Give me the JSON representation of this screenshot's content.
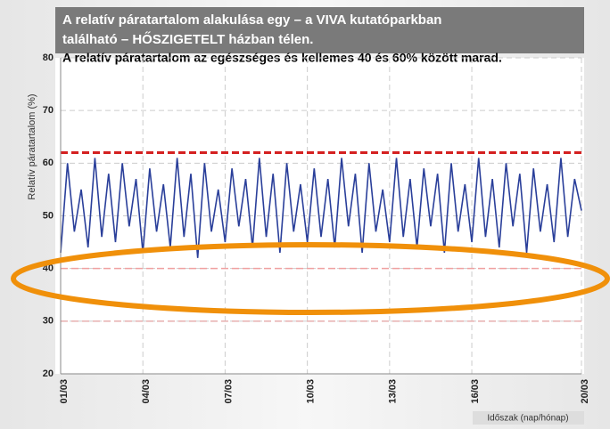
{
  "chart_data": {
    "type": "line",
    "title": [
      "A relatív páratartalom alakulása egy – a VIVA kutatóparkban",
      "található – HŐSZIGETELT házban télen."
    ],
    "subtitle": "A relatív páratartalom az egészséges és kellemes 40 és 60% között marad.",
    "y_label": "Relatív páratartalom (%)",
    "x_label": "Időszak (nap/hónap)",
    "xlim": [
      1,
      20
    ],
    "ylim": [
      20,
      80
    ],
    "xticks": [
      {
        "value": 1,
        "label": "01/03"
      },
      {
        "value": 4,
        "label": "04/03"
      },
      {
        "value": 7,
        "label": "07/03"
      },
      {
        "value": 10,
        "label": "10/03"
      },
      {
        "value": 13,
        "label": "13/03"
      },
      {
        "value": 16,
        "label": "16/03"
      },
      {
        "value": 20,
        "label": "20/03"
      }
    ],
    "yticks": [
      20,
      30,
      40,
      50,
      60,
      70,
      80
    ],
    "grid": true,
    "reference_lines": [
      {
        "value": 62,
        "color": "#d42020"
      },
      {
        "value": 40,
        "color": "#f0a0a0"
      },
      {
        "value": 30,
        "color": "#e8b0b0"
      }
    ],
    "x": [
      1,
      1.25,
      1.5,
      1.75,
      2,
      2.25,
      2.5,
      2.75,
      3,
      3.25,
      3.5,
      3.75,
      4,
      4.25,
      4.5,
      4.75,
      5,
      5.25,
      5.5,
      5.75,
      6,
      6.25,
      6.5,
      6.75,
      7,
      7.25,
      7.5,
      7.75,
      8,
      8.25,
      8.5,
      8.75,
      9,
      9.25,
      9.5,
      9.75,
      10,
      10.25,
      10.5,
      10.75,
      11,
      11.25,
      11.5,
      11.75,
      12,
      12.25,
      12.5,
      12.75,
      13,
      13.25,
      13.5,
      13.75,
      14,
      14.25,
      14.5,
      14.75,
      15,
      15.25,
      15.5,
      15.75,
      16,
      16.25,
      16.5,
      16.75,
      17,
      17.25,
      17.5,
      17.75,
      18,
      18.25,
      18.5,
      18.75,
      19,
      19.25,
      19.5,
      19.75,
      20
    ],
    "series": [
      {
        "color": "#2a3f9a",
        "values": [
          43,
          60,
          47,
          55,
          44,
          61,
          46,
          58,
          45,
          60,
          48,
          57,
          43,
          59,
          47,
          56,
          44,
          61,
          46,
          58,
          42,
          60,
          47,
          55,
          45,
          59,
          48,
          57,
          44,
          61,
          46,
          58,
          43,
          60,
          47,
          56,
          45,
          59,
          46,
          57,
          44,
          61,
          48,
          58,
          43,
          60,
          47,
          55,
          45,
          61,
          46,
          57,
          44,
          59,
          48,
          58,
          43,
          60,
          47,
          56,
          45,
          61,
          46,
          57,
          44,
          60,
          48,
          58,
          43,
          59,
          47,
          56,
          45,
          61,
          46,
          57,
          51
        ]
      }
    ]
  }
}
